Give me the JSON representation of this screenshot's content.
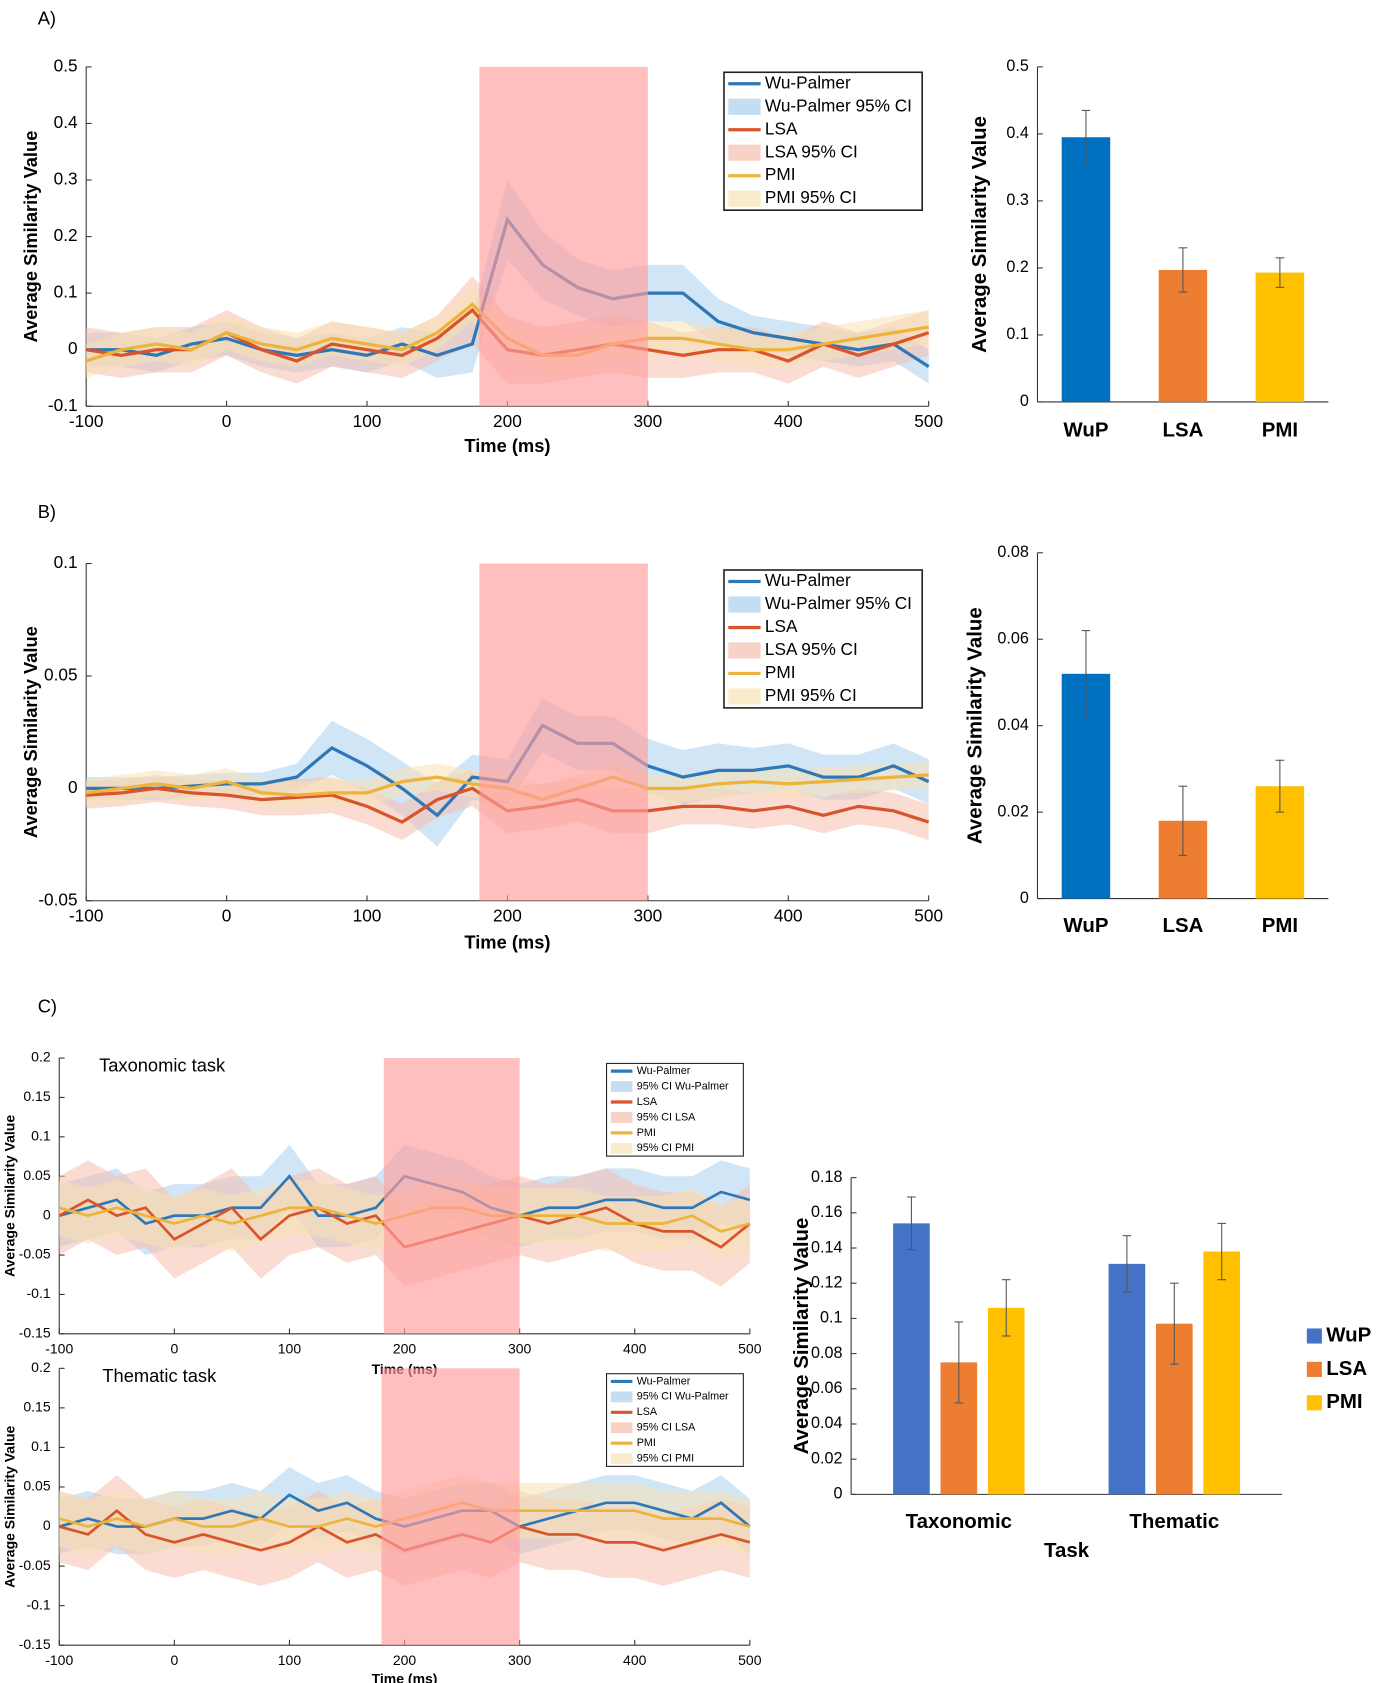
{
  "panels": [
    "A)",
    "B)",
    "C)"
  ],
  "chart_data": [
    {
      "type": "line",
      "x_label": "Time (ms)",
      "y_label": "Average Similarity Value",
      "x": [
        -100,
        -75,
        -50,
        -25,
        0,
        25,
        50,
        75,
        100,
        125,
        150,
        175,
        200,
        225,
        250,
        275,
        300,
        325,
        350,
        375,
        400,
        425,
        450,
        475,
        500
      ],
      "xlim": [
        -100,
        500
      ],
      "xticks": [
        -100,
        0,
        100,
        200,
        300,
        400,
        500
      ],
      "ylim": [
        -0.1,
        0.5
      ],
      "yticks": [
        -0.1,
        0,
        0.1,
        0.2,
        0.3,
        0.4,
        0.5
      ],
      "highlight": [
        180,
        300
      ],
      "highlight_color": "#ff9d9d",
      "series": [
        {
          "name": "Wu-Palmer",
          "ci_name": "Wu-Palmer 95% CI",
          "color": "#2f78b7",
          "ci_color": "#a9d0ee",
          "values": [
            0,
            0,
            -0.01,
            0.01,
            0.02,
            0,
            -0.01,
            0,
            -0.01,
            0.01,
            -0.01,
            0.01,
            0.23,
            0.15,
            0.11,
            0.09,
            0.1,
            0.1,
            0.05,
            0.03,
            0.02,
            0.01,
            0,
            0.01,
            -0.03
          ],
          "ci": [
            0.03,
            0.03,
            0.03,
            0.03,
            0.03,
            0.03,
            0.03,
            0.03,
            0.03,
            0.03,
            0.04,
            0.05,
            0.07,
            0.06,
            0.05,
            0.05,
            0.05,
            0.05,
            0.04,
            0.03,
            0.03,
            0.03,
            0.03,
            0.03,
            0.03
          ]
        },
        {
          "name": "LSA",
          "ci_name": "LSA 95% CI",
          "color": "#d9542b",
          "ci_color": "#f5bfae",
          "values": [
            0,
            -0.01,
            0,
            0,
            0.03,
            0,
            -0.02,
            0.01,
            0,
            -0.01,
            0.02,
            0.07,
            0,
            -0.01,
            0,
            0.01,
            0,
            -0.01,
            0,
            0,
            -0.02,
            0.01,
            -0.01,
            0.01,
            0.03
          ],
          "ci": [
            0.04,
            0.04,
            0.04,
            0.04,
            0.04,
            0.04,
            0.04,
            0.04,
            0.04,
            0.04,
            0.04,
            0.06,
            0.06,
            0.05,
            0.05,
            0.05,
            0.05,
            0.04,
            0.04,
            0.04,
            0.04,
            0.04,
            0.04,
            0.04,
            0.04
          ]
        },
        {
          "name": "PMI",
          "ci_name": "PMI 95% CI",
          "color": "#edb33a",
          "ci_color": "#f8e2b4",
          "values": [
            -0.02,
            0,
            0.01,
            0,
            0.03,
            0.01,
            0,
            0.02,
            0.01,
            0,
            0.03,
            0.08,
            0.02,
            -0.01,
            -0.01,
            0.01,
            0.02,
            0.02,
            0.01,
            0,
            0,
            0.01,
            0.02,
            0.03,
            0.04
          ],
          "ci": [
            0.03,
            0.03,
            0.03,
            0.03,
            0.03,
            0.03,
            0.03,
            0.03,
            0.03,
            0.03,
            0.03,
            0.03,
            0.03,
            0.03,
            0.03,
            0.03,
            0.03,
            0.03,
            0.03,
            0.03,
            0.03,
            0.03,
            0.03,
            0.03,
            0.03
          ]
        }
      ]
    },
    {
      "type": "bar",
      "y_label": "Average Similarity Value",
      "text_color": "#666666",
      "categories": [
        "WuP",
        "LSA",
        "PMI"
      ],
      "values": [
        0.395,
        0.197,
        0.193
      ],
      "errors": [
        0.04,
        0.033,
        0.022
      ],
      "colors": [
        "#0070c0",
        "#ed7d31",
        "#ffc000"
      ],
      "ylim": [
        0,
        0.5
      ],
      "yticks": [
        0,
        0.1,
        0.2,
        0.3,
        0.4,
        0.5
      ]
    },
    {
      "type": "line",
      "x_label": "Time (ms)",
      "y_label": "Average Similarity Value",
      "x": [
        -100,
        -75,
        -50,
        -25,
        0,
        25,
        50,
        75,
        100,
        125,
        150,
        175,
        200,
        225,
        250,
        275,
        300,
        325,
        350,
        375,
        400,
        425,
        450,
        475,
        500
      ],
      "xlim": [
        -100,
        500
      ],
      "xticks": [
        -100,
        0,
        100,
        200,
        300,
        400,
        500
      ],
      "ylim": [
        -0.05,
        0.1
      ],
      "yticks": [
        -0.05,
        0,
        0.05,
        0.1
      ],
      "highlight": [
        180,
        300
      ],
      "highlight_color": "#ff9d9d",
      "series": [
        {
          "name": "Wu-Palmer",
          "ci_name": "Wu-Palmer 95% CI",
          "color": "#2f78b7",
          "ci_color": "#a9d0ee",
          "values": [
            0,
            0,
            0,
            0.001,
            0.002,
            0.002,
            0.005,
            0.018,
            0.01,
            0,
            -0.012,
            0.005,
            0.003,
            0.028,
            0.02,
            0.02,
            0.01,
            0.005,
            0.008,
            0.008,
            0.01,
            0.005,
            0.005,
            0.01,
            0.003
          ],
          "ci": [
            0.005,
            0.005,
            0.005,
            0.005,
            0.005,
            0.005,
            0.006,
            0.012,
            0.012,
            0.012,
            0.014,
            0.01,
            0.01,
            0.012,
            0.012,
            0.012,
            0.012,
            0.012,
            0.012,
            0.01,
            0.01,
            0.01,
            0.01,
            0.01,
            0.01
          ]
        },
        {
          "name": "LSA",
          "ci_name": "LSA 95% CI",
          "color": "#d9542b",
          "ci_color": "#f5bfae",
          "values": [
            -0.003,
            -0.002,
            0,
            -0.002,
            -0.003,
            -0.005,
            -0.004,
            -0.003,
            -0.008,
            -0.015,
            -0.005,
            0,
            -0.01,
            -0.008,
            -0.005,
            -0.01,
            -0.01,
            -0.008,
            -0.008,
            -0.01,
            -0.008,
            -0.012,
            -0.008,
            -0.01,
            -0.015
          ],
          "ci": [
            0.006,
            0.006,
            0.006,
            0.006,
            0.006,
            0.007,
            0.008,
            0.008,
            0.008,
            0.008,
            0.008,
            0.008,
            0.01,
            0.01,
            0.01,
            0.01,
            0.01,
            0.008,
            0.008,
            0.008,
            0.008,
            0.008,
            0.008,
            0.008,
            0.008
          ]
        },
        {
          "name": "PMI",
          "ci_name": "PMI 95% CI",
          "color": "#edb33a",
          "ci_color": "#f8e2b4",
          "values": [
            -0.002,
            0,
            0.002,
            0,
            0.003,
            -0.002,
            -0.003,
            -0.002,
            -0.002,
            0.003,
            0.005,
            0.002,
            0,
            -0.005,
            0,
            0.005,
            0,
            0,
            0.002,
            0.003,
            0.002,
            0.003,
            0.004,
            0.005,
            0.006
          ],
          "ci": [
            0.006,
            0.006,
            0.006,
            0.006,
            0.006,
            0.006,
            0.006,
            0.006,
            0.006,
            0.006,
            0.006,
            0.006,
            0.006,
            0.006,
            0.006,
            0.006,
            0.006,
            0.006,
            0.006,
            0.006,
            0.006,
            0.006,
            0.006,
            0.006,
            0.006
          ]
        }
      ]
    },
    {
      "type": "bar",
      "y_label": "Average Similarity Value",
      "text_color": "#000000",
      "categories": [
        "WuP",
        "LSA",
        "PMI"
      ],
      "values": [
        0.052,
        0.018,
        0.026
      ],
      "errors": [
        0.01,
        0.008,
        0.006
      ],
      "colors": [
        "#0070c0",
        "#ed7d31",
        "#ffc000"
      ],
      "ylim": [
        0,
        0.08
      ],
      "yticks": [
        0,
        0.02,
        0.04,
        0.06,
        0.08
      ]
    },
    {
      "type": "line",
      "title": "Taxonomic task",
      "x_label": "Time (ms)",
      "y_label": "Average Similarity Value",
      "x": [
        -100,
        -75,
        -50,
        -25,
        0,
        25,
        50,
        75,
        100,
        125,
        150,
        175,
        200,
        225,
        250,
        275,
        300,
        325,
        350,
        375,
        400,
        425,
        450,
        475,
        500
      ],
      "xlim": [
        -100,
        500
      ],
      "xticks": [
        -100,
        0,
        100,
        200,
        300,
        400,
        500
      ],
      "ylim": [
        -0.15,
        0.2
      ],
      "yticks": [
        -0.15,
        -0.1,
        -0.05,
        0,
        0.05,
        0.1,
        0.15,
        0.2
      ],
      "highlight": [
        182,
        300
      ],
      "highlight_color": "#ff9d9d",
      "series": [
        {
          "name": "Wu-Palmer",
          "ci_name": "95% CI Wu-Palmer",
          "color": "#2f78b7",
          "ci_color": "#a9d0ee",
          "values": [
            0,
            0.01,
            0.02,
            -0.01,
            0,
            0,
            0.01,
            0.01,
            0.05,
            0,
            0,
            0.01,
            0.05,
            0.04,
            0.03,
            0.01,
            0,
            0.01,
            0.01,
            0.02,
            0.02,
            0.01,
            0.01,
            0.03,
            0.02
          ],
          "ci": [
            0.04,
            0.04,
            0.04,
            0.04,
            0.04,
            0.04,
            0.04,
            0.04,
            0.04,
            0.04,
            0.04,
            0.04,
            0.04,
            0.04,
            0.04,
            0.04,
            0.04,
            0.04,
            0.04,
            0.04,
            0.04,
            0.04,
            0.04,
            0.04,
            0.04
          ]
        },
        {
          "name": "LSA",
          "ci_name": "95% CI LSA",
          "color": "#d9542b",
          "ci_color": "#f5bfae",
          "values": [
            0,
            0.02,
            0,
            0.01,
            -0.03,
            -0.01,
            0.01,
            -0.03,
            0,
            0.01,
            -0.01,
            0,
            -0.04,
            -0.03,
            -0.02,
            -0.01,
            0,
            -0.01,
            0,
            0.01,
            -0.01,
            -0.02,
            -0.02,
            -0.04,
            -0.01
          ],
          "ci": [
            0.05,
            0.05,
            0.05,
            0.05,
            0.05,
            0.05,
            0.05,
            0.05,
            0.05,
            0.05,
            0.05,
            0.05,
            0.05,
            0.05,
            0.05,
            0.05,
            0.05,
            0.05,
            0.05,
            0.05,
            0.05,
            0.05,
            0.05,
            0.05,
            0.05
          ]
        },
        {
          "name": "PMI",
          "ci_name": "95% CI PMI",
          "color": "#edb33a",
          "ci_color": "#f8e2b4",
          "values": [
            0.01,
            0,
            0.01,
            0,
            -0.01,
            0,
            -0.01,
            0,
            0.01,
            0.01,
            0,
            -0.01,
            0,
            0.01,
            0.01,
            0,
            0,
            0,
            0,
            -0.01,
            -0.01,
            -0.01,
            0,
            -0.02,
            -0.01
          ],
          "ci": [
            0.035,
            0.035,
            0.035,
            0.035,
            0.035,
            0.035,
            0.035,
            0.035,
            0.035,
            0.035,
            0.035,
            0.035,
            0.035,
            0.035,
            0.035,
            0.035,
            0.035,
            0.035,
            0.035,
            0.035,
            0.035,
            0.035,
            0.035,
            0.035,
            0.035
          ]
        }
      ]
    },
    {
      "type": "line",
      "title": "Thematic task",
      "x_label": "Time (ms)",
      "y_label": "Average Similarity Value",
      "x": [
        -100,
        -75,
        -50,
        -25,
        0,
        25,
        50,
        75,
        100,
        125,
        150,
        175,
        200,
        225,
        250,
        275,
        300,
        325,
        350,
        375,
        400,
        425,
        450,
        475,
        500
      ],
      "xlim": [
        -100,
        500
      ],
      "xticks": [
        -100,
        0,
        100,
        200,
        300,
        400,
        500
      ],
      "ylim": [
        -0.15,
        0.2
      ],
      "yticks": [
        -0.15,
        -0.1,
        -0.05,
        0,
        0.05,
        0.1,
        0.15,
        0.2
      ],
      "highlight": [
        180,
        300
      ],
      "highlight_color": "#ff9d9d",
      "series": [
        {
          "name": "Wu-Palmer",
          "ci_name": "95% CI Wu-Palmer",
          "color": "#2f78b7",
          "ci_color": "#a9d0ee",
          "values": [
            0,
            0.01,
            0,
            0,
            0.01,
            0.01,
            0.02,
            0.01,
            0.04,
            0.02,
            0.03,
            0.01,
            0,
            0.01,
            0.02,
            0.02,
            0,
            0.01,
            0.02,
            0.03,
            0.03,
            0.02,
            0.01,
            0.03,
            0
          ],
          "ci": [
            0.035,
            0.035,
            0.035,
            0.035,
            0.035,
            0.035,
            0.035,
            0.035,
            0.035,
            0.035,
            0.035,
            0.035,
            0.035,
            0.035,
            0.035,
            0.035,
            0.035,
            0.035,
            0.035,
            0.035,
            0.035,
            0.035,
            0.035,
            0.035,
            0.035
          ]
        },
        {
          "name": "LSA",
          "ci_name": "95% CI LSA",
          "color": "#d9542b",
          "ci_color": "#f5bfae",
          "values": [
            0,
            -0.01,
            0.02,
            -0.01,
            -0.02,
            -0.01,
            -0.02,
            -0.03,
            -0.02,
            0,
            -0.02,
            -0.01,
            -0.03,
            -0.02,
            -0.01,
            -0.02,
            0,
            -0.01,
            -0.01,
            -0.02,
            -0.02,
            -0.03,
            -0.02,
            -0.01,
            -0.02
          ],
          "ci": [
            0.045,
            0.045,
            0.045,
            0.045,
            0.045,
            0.045,
            0.045,
            0.045,
            0.045,
            0.045,
            0.045,
            0.045,
            0.045,
            0.045,
            0.045,
            0.045,
            0.045,
            0.045,
            0.045,
            0.045,
            0.045,
            0.045,
            0.045,
            0.045,
            0.045
          ]
        },
        {
          "name": "PMI",
          "ci_name": "95% CI PMI",
          "color": "#edb33a",
          "ci_color": "#f8e2b4",
          "values": [
            0.01,
            0,
            0.01,
            0,
            0.01,
            0,
            0,
            0.01,
            0,
            0,
            0.01,
            0,
            0.01,
            0.02,
            0.03,
            0.02,
            0.02,
            0.02,
            0.02,
            0.02,
            0.02,
            0.01,
            0.01,
            0.01,
            0
          ],
          "ci": [
            0.035,
            0.035,
            0.035,
            0.035,
            0.035,
            0.035,
            0.035,
            0.035,
            0.035,
            0.035,
            0.035,
            0.035,
            0.035,
            0.035,
            0.035,
            0.035,
            0.035,
            0.035,
            0.035,
            0.035,
            0.035,
            0.035,
            0.035,
            0.035,
            0.035
          ]
        }
      ]
    },
    {
      "type": "bar",
      "x_label": "Task",
      "y_label": "Average Similarity Value",
      "text_color": "#000000",
      "legend": "right",
      "categories": [
        "Taxonomic",
        "Thematic"
      ],
      "ylim": [
        0,
        0.18
      ],
      "yticks": [
        0,
        0.02,
        0.04,
        0.06,
        0.08,
        0.1,
        0.12,
        0.14,
        0.16,
        0.18
      ],
      "series": [
        {
          "name": "WuP",
          "color": "#4472c4",
          "values": [
            0.154,
            0.131
          ],
          "errors": [
            0.015,
            0.016
          ]
        },
        {
          "name": "LSA",
          "color": "#ed7d31",
          "values": [
            0.075,
            0.097
          ],
          "errors": [
            0.023,
            0.023
          ]
        },
        {
          "name": "PMI",
          "color": "#ffc000",
          "values": [
            0.106,
            0.138
          ],
          "errors": [
            0.016,
            0.016
          ]
        }
      ]
    }
  ]
}
